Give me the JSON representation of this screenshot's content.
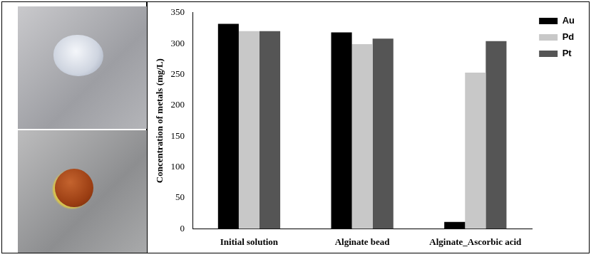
{
  "chart_data": {
    "type": "bar",
    "y_label": "Concentration of metals (mg/L)",
    "categories": [
      "Initial solution",
      "Alginate bead",
      "Alginate_Ascorbic acid"
    ],
    "series": [
      {
        "name": "Au",
        "color": "#000000",
        "values": [
          332,
          318,
          11
        ]
      },
      {
        "name": "Pd",
        "color": "#c8c8c8",
        "values": [
          320,
          299,
          253
        ]
      },
      {
        "name": "Pt",
        "color": "#555555",
        "values": [
          320,
          308,
          304
        ]
      }
    ],
    "ylim": [
      0,
      350
    ],
    "yticks": [
      0,
      50,
      100,
      150,
      200,
      250,
      300,
      350
    ],
    "grid": false,
    "legend": "upper right"
  }
}
